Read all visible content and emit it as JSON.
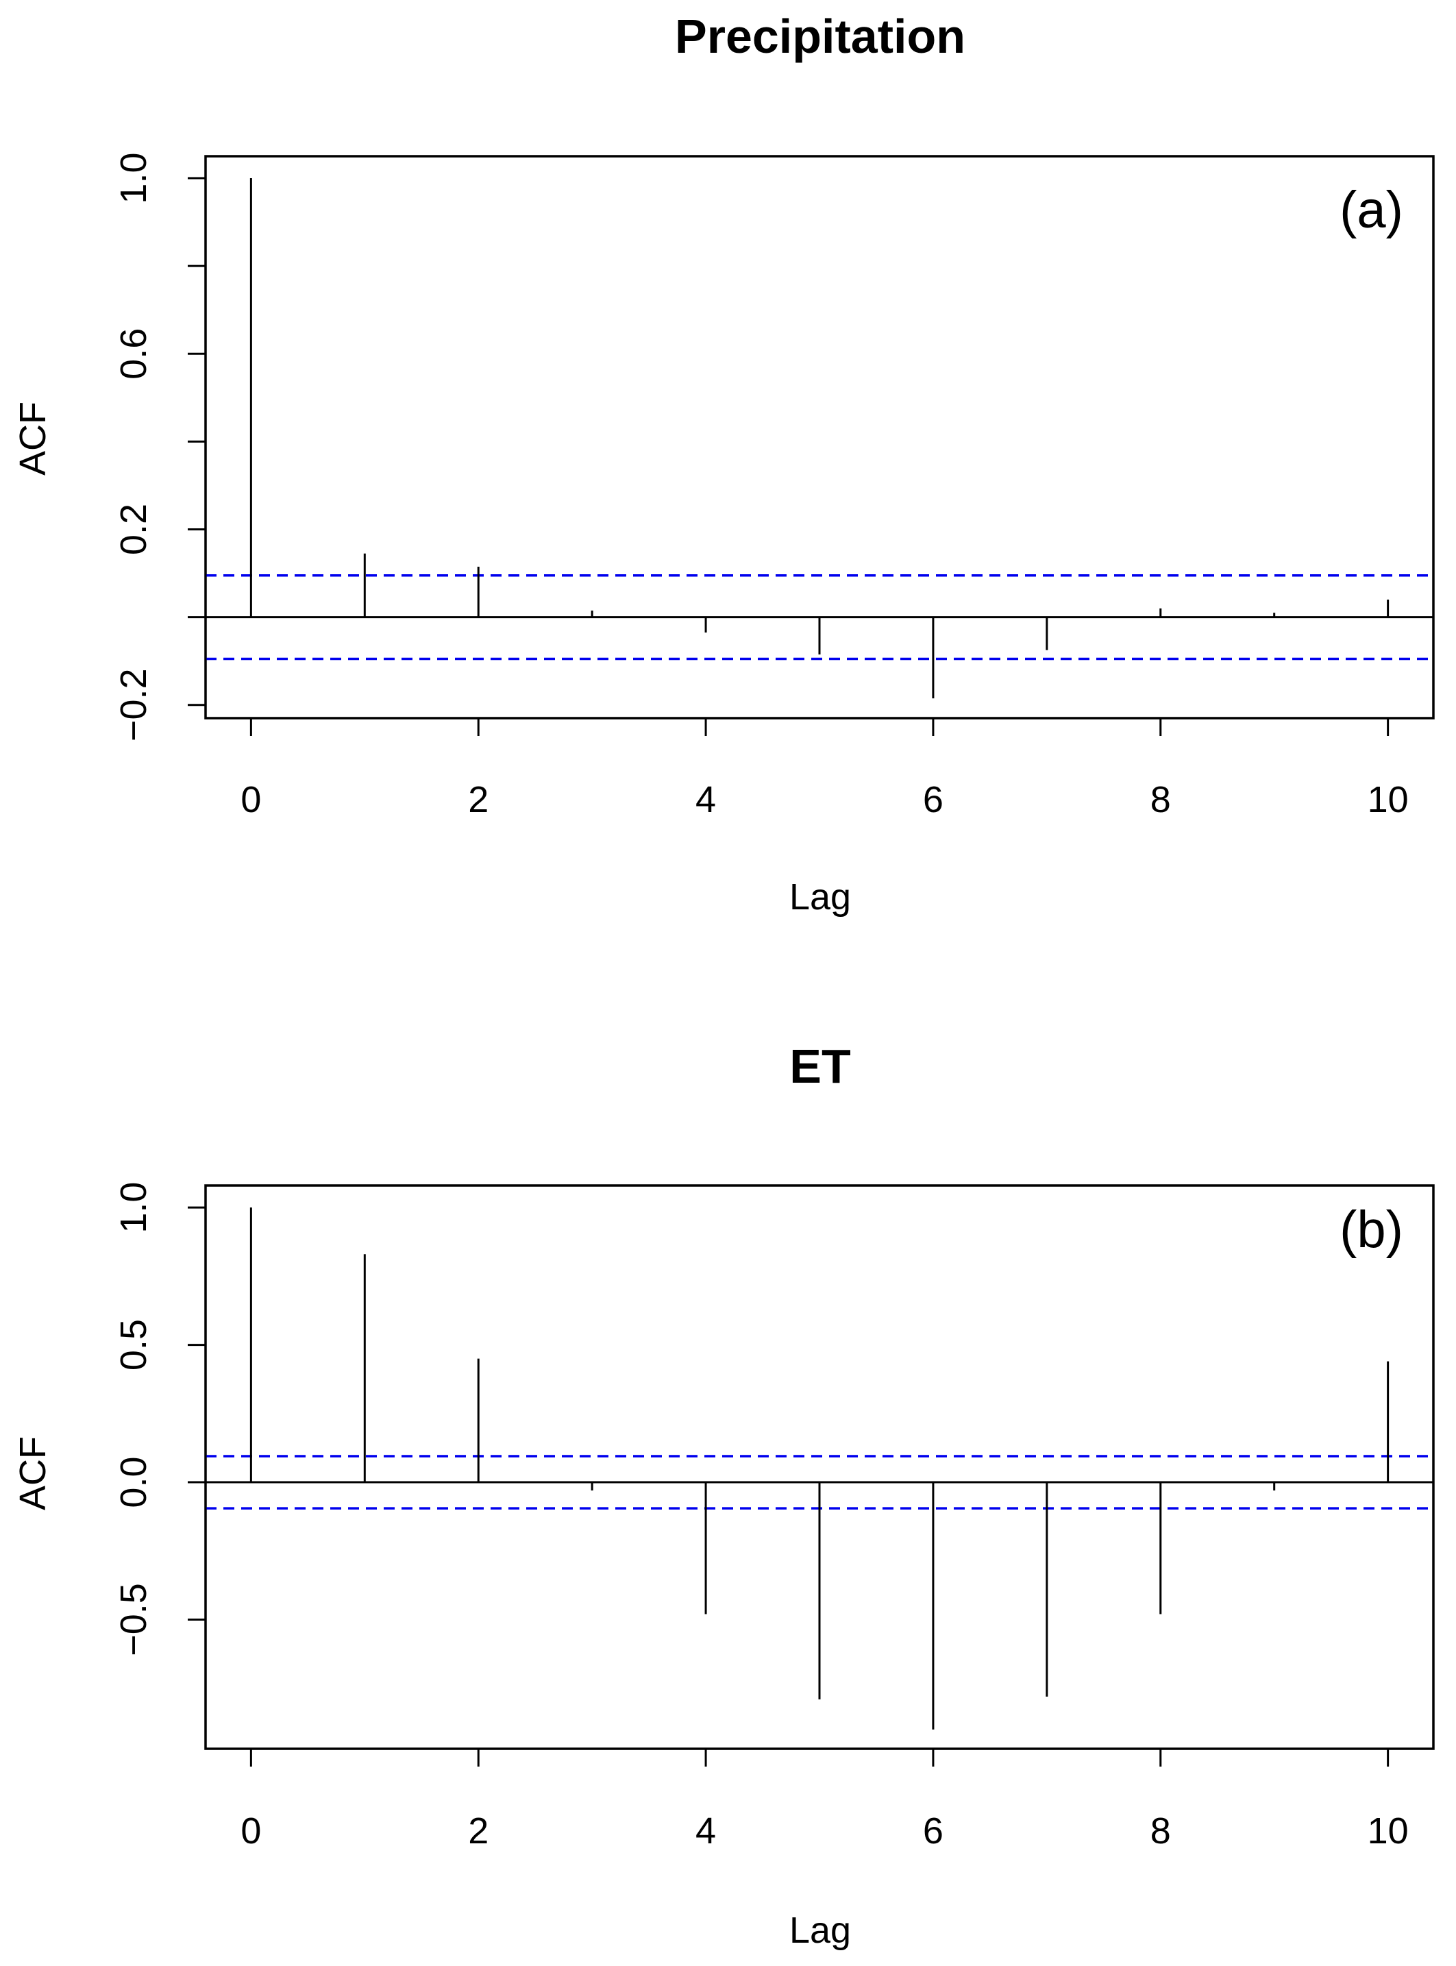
{
  "chart_data": [
    {
      "type": "bar",
      "title": "Precipitation",
      "panel_label": "(a)",
      "xlabel": "Lag",
      "ylabel": "ACF",
      "xlim": [
        -0.4,
        10.4
      ],
      "ylim": [
        -0.23,
        1.05
      ],
      "x": [
        0,
        1,
        2,
        3,
        4,
        5,
        6,
        7,
        8,
        9,
        10
      ],
      "values": [
        1.0,
        0.145,
        0.115,
        0.015,
        -0.035,
        -0.085,
        -0.185,
        -0.075,
        0.02,
        0.01,
        0.04
      ],
      "x_ticks": [
        0,
        2,
        4,
        6,
        8,
        10
      ],
      "x_tick_labels": [
        "0",
        "2",
        "4",
        "6",
        "8",
        "10"
      ],
      "y_ticks": [
        -0.2,
        0.0,
        0.2,
        0.4,
        0.6,
        0.8,
        1.0
      ],
      "y_tick_labels": [
        "−0.2",
        "",
        "0.2",
        "",
        "0.6",
        "",
        "1.0"
      ],
      "confidence_bound": 0.095,
      "colors": {
        "bars": "#000000",
        "confidence": "#0000ee"
      },
      "grid": false
    },
    {
      "type": "bar",
      "title": "ET",
      "panel_label": "(b)",
      "xlabel": "Lag",
      "ylabel": "ACF",
      "xlim": [
        -0.4,
        10.4
      ],
      "ylim": [
        -0.97,
        1.08
      ],
      "x": [
        0,
        1,
        2,
        3,
        4,
        5,
        6,
        7,
        8,
        9,
        10
      ],
      "values": [
        1.0,
        0.83,
        0.45,
        -0.03,
        -0.48,
        -0.79,
        -0.9,
        -0.78,
        -0.48,
        -0.03,
        0.44
      ],
      "x_ticks": [
        0,
        2,
        4,
        6,
        8,
        10
      ],
      "x_tick_labels": [
        "0",
        "2",
        "4",
        "6",
        "8",
        "10"
      ],
      "y_ticks": [
        -0.5,
        0.0,
        0.5,
        1.0
      ],
      "y_tick_labels": [
        "−0.5",
        "0.0",
        "0.5",
        "1.0"
      ],
      "confidence_bound": 0.095,
      "colors": {
        "bars": "#000000",
        "confidence": "#0000ee"
      },
      "grid": false
    }
  ]
}
